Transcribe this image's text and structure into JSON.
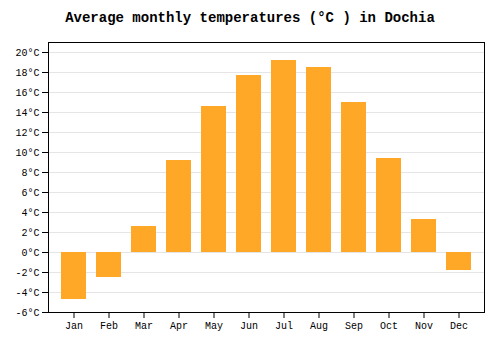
{
  "chart_data": {
    "type": "bar",
    "title": "Average monthly temperatures (°C ) in Dochia",
    "categories": [
      "Jan",
      "Feb",
      "Mar",
      "Apr",
      "May",
      "Jun",
      "Jul",
      "Aug",
      "Sep",
      "Oct",
      "Nov",
      "Dec"
    ],
    "values": [
      -4.7,
      -2.5,
      2.6,
      9.2,
      14.6,
      17.7,
      19.2,
      18.5,
      15.0,
      9.4,
      3.3,
      -1.8
    ],
    "color": "#FFA726",
    "ylim": [
      -6,
      21
    ],
    "yticks": [
      {
        "value": -6,
        "label": "-6°C"
      },
      {
        "value": -4,
        "label": "-4°C"
      },
      {
        "value": -2,
        "label": "-2°C"
      },
      {
        "value": 0,
        "label": "0°C"
      },
      {
        "value": 2,
        "label": "2°C"
      },
      {
        "value": 4,
        "label": "4°C"
      },
      {
        "value": 6,
        "label": "6°C"
      },
      {
        "value": 8,
        "label": "8°C"
      },
      {
        "value": 10,
        "label": "10°C"
      },
      {
        "value": 12,
        "label": "12°C"
      },
      {
        "value": 14,
        "label": "14°C"
      },
      {
        "value": 16,
        "label": "16°C"
      },
      {
        "value": 18,
        "label": "18°C"
      },
      {
        "value": 20,
        "label": "20°C"
      }
    ],
    "grid": true
  }
}
